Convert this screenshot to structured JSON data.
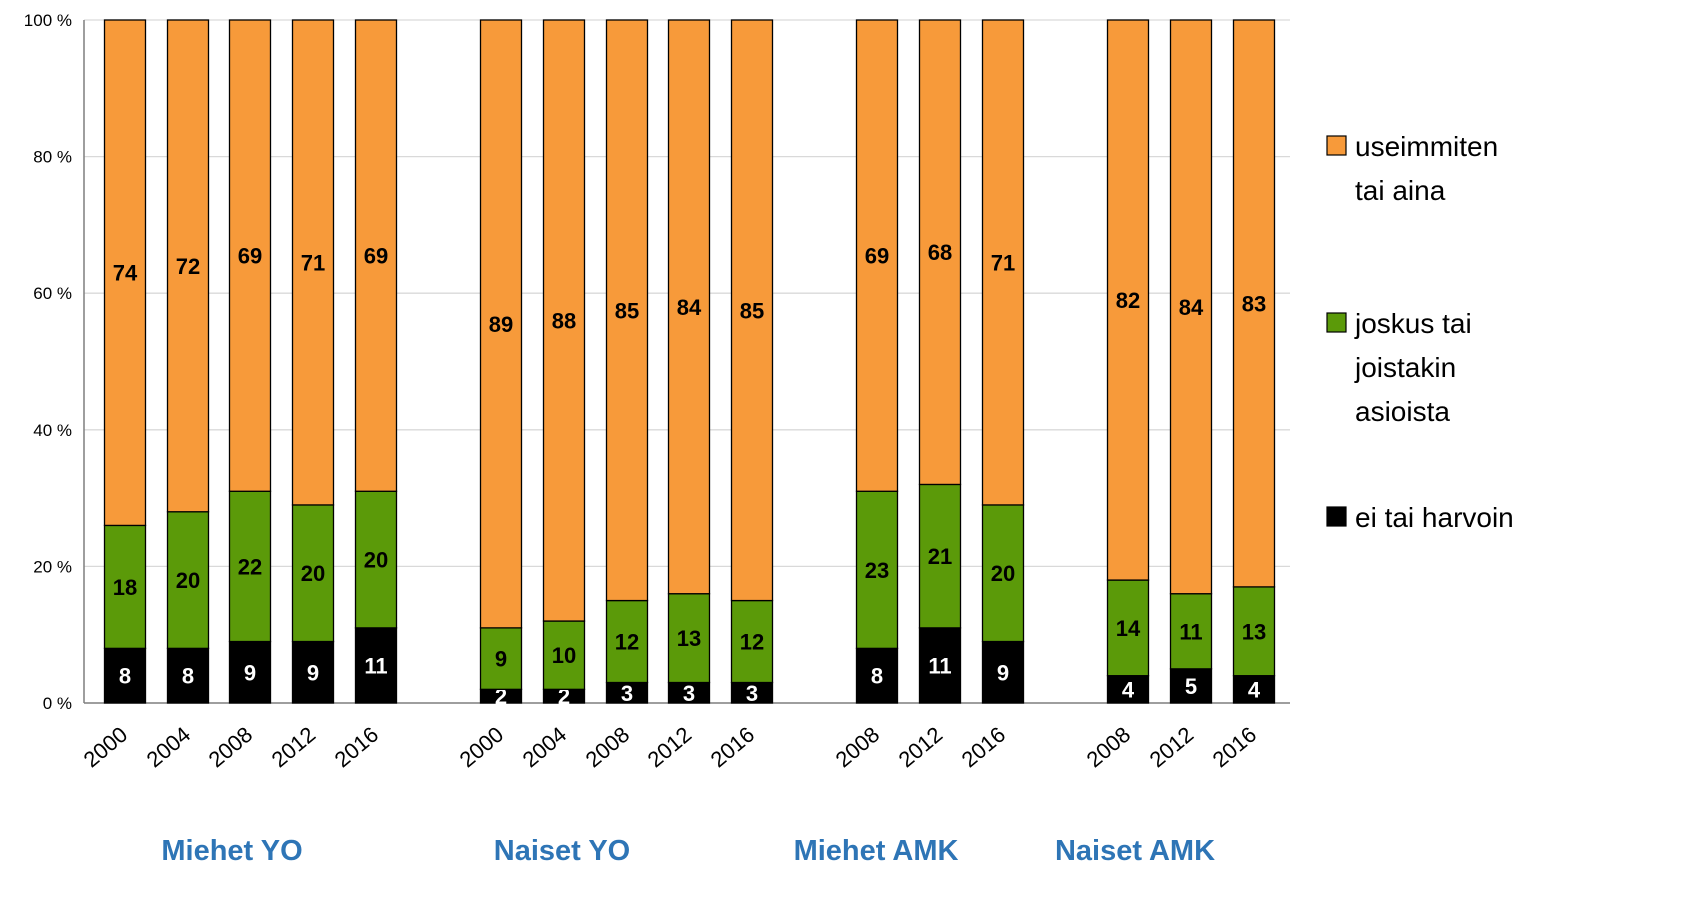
{
  "chart_data": {
    "type": "bar",
    "stacked": true,
    "ylim": [
      0,
      100
    ],
    "yticks": [
      "0 %",
      "20 %",
      "40 %",
      "60 %",
      "80 %",
      "100 %"
    ],
    "grid": true,
    "legend_position": "right",
    "groups": [
      {
        "label": "Miehet YO",
        "categories": [
          "2000",
          "2004",
          "2008",
          "2012",
          "2016"
        ]
      },
      {
        "label": "Naiset YO",
        "categories": [
          "2000",
          "2004",
          "2008",
          "2012",
          "2016"
        ]
      },
      {
        "label": "Miehet AMK",
        "categories": [
          "2008",
          "2012",
          "2016"
        ]
      },
      {
        "label": "Naiset AMK",
        "categories": [
          "2008",
          "2012",
          "2016"
        ]
      }
    ],
    "series": [
      {
        "name": "ei tai harvoin",
        "color": "#000000",
        "label_color": "#ffffff",
        "values": [
          8,
          8,
          9,
          9,
          11,
          2,
          2,
          3,
          3,
          3,
          8,
          11,
          9,
          4,
          5,
          4
        ]
      },
      {
        "name": "joskus tai joistakin asioista",
        "color": "#5b9a09",
        "label_color": "#000000",
        "values": [
          18,
          20,
          22,
          20,
          20,
          9,
          10,
          12,
          13,
          12,
          23,
          21,
          20,
          14,
          11,
          13
        ]
      },
      {
        "name": "useimmiten tai aina",
        "color": "#f79a3a",
        "label_color": "#000000",
        "values": [
          74,
          72,
          69,
          71,
          69,
          89,
          88,
          85,
          84,
          85,
          69,
          68,
          71,
          82,
          84,
          83
        ]
      }
    ],
    "legend": [
      {
        "lines": [
          "useimmiten",
          "tai aina"
        ],
        "color": "#f79a3a",
        "icon": "square-swatch"
      },
      {
        "lines": [
          "joskus tai",
          "joistakin",
          "asioista"
        ],
        "color": "#5b9a09",
        "icon": "square-swatch"
      },
      {
        "lines": [
          "ei tai harvoin"
        ],
        "color": "#000000",
        "icon": "square-swatch"
      }
    ]
  }
}
